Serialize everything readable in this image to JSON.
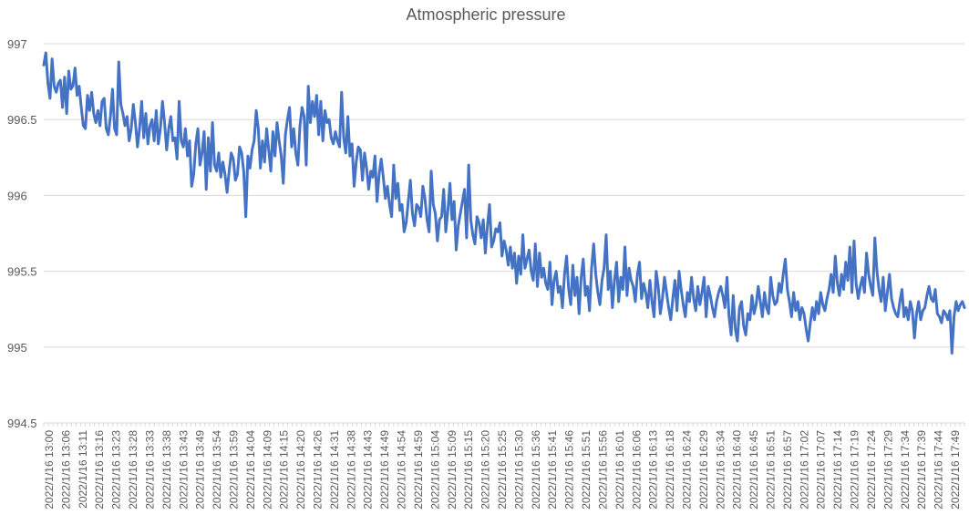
{
  "chart_data": {
    "type": "line",
    "title": "Atmospheric pressure",
    "xlabel": "",
    "ylabel": "",
    "ylim": [
      994.5,
      997
    ],
    "yticks": [
      994.5,
      995,
      995.5,
      996,
      996.5,
      997
    ],
    "ytick_labels": [
      "994.5",
      "995",
      "995.5",
      "996",
      "996.5",
      "997"
    ],
    "grid": true,
    "legend": "none",
    "series_color": "#4472C4",
    "x_labels": [
      "2022/1/16 13:00",
      "2022/1/16 13:06",
      "2022/1/16 13:11",
      "2022/1/16 13:16",
      "2022/1/16 13:23",
      "2022/1/16 13:28",
      "2022/1/16 13:33",
      "2022/1/16 13:38",
      "2022/1/16 13:43",
      "2022/1/16 13:49",
      "2022/1/16 13:54",
      "2022/1/16 13:59",
      "2022/1/16 14:04",
      "2022/1/16 14:09",
      "2022/1/16 14:15",
      "2022/1/16 14:20",
      "2022/1/16 14:26",
      "2022/1/16 14:31",
      "2022/1/16 14:38",
      "2022/1/16 14:43",
      "2022/1/16 14:49",
      "2022/1/16 14:54",
      "2022/1/16 14:59",
      "2022/1/16 15:04",
      "2022/1/16 15:09",
      "2022/1/16 15:15",
      "2022/1/16 15:20",
      "2022/1/16 15:25",
      "2022/1/16 15:30",
      "2022/1/16 15:36",
      "2022/1/16 15:41",
      "2022/1/16 15:46",
      "2022/1/16 15:51",
      "2022/1/16 15:56",
      "2022/1/16 16:01",
      "2022/1/16 16:06",
      "2022/1/16 16:13",
      "2022/1/16 16:18",
      "2022/1/16 16:24",
      "2022/1/16 16:29",
      "2022/1/16 16:34",
      "2022/1/16 16:40",
      "2022/1/16 16:45",
      "2022/1/16 16:51",
      "2022/1/16 16:57",
      "2022/1/16 17:02",
      "2022/1/16 17:07",
      "2022/1/16 17:14",
      "2022/1/16 17:19",
      "2022/1/16 17:24",
      "2022/1/16 17:29",
      "2022/1/16 17:34",
      "2022/1/16 17:39",
      "2022/1/16 17:44",
      "2022/1/16 17:49"
    ],
    "series": [
      {
        "name": "Atmospheric pressure",
        "values": [
          996.86,
          996.94,
          996.74,
          996.64,
          996.9,
          996.72,
          996.68,
          996.74,
          996.76,
          996.58,
          996.78,
          996.54,
          996.82,
          996.7,
          996.72,
          996.84,
          996.66,
          996.72,
          996.58,
          996.46,
          996.44,
          996.66,
          996.56,
          996.68,
          996.54,
          996.48,
          996.56,
          996.46,
          996.62,
          996.64,
          996.44,
          996.4,
          996.52,
          996.7,
          996.44,
          996.4,
          996.88,
          996.6,
          996.54,
          996.46,
          996.52,
          996.36,
          996.44,
          996.6,
          996.48,
          996.32,
          996.44,
          996.62,
          996.38,
          996.54,
          996.34,
          996.46,
          996.5,
          996.36,
          996.56,
          996.34,
          996.44,
          996.62,
          996.48,
          996.3,
          996.44,
          996.52,
          996.36,
          996.38,
          996.24,
          996.62,
          996.36,
          996.32,
          996.44,
          996.26,
          996.36,
          996.06,
          996.14,
          996.34,
          996.44,
          996.2,
          996.28,
          996.42,
          996.04,
          996.38,
          996.16,
          996.48,
          996.2,
          996.16,
          996.28,
          996.12,
          996.22,
          996.14,
          996.02,
          996.16,
          996.28,
          996.24,
          996.1,
          996.14,
          996.32,
          996.28,
          996.16,
          995.86,
          996.26,
          996.18,
          996.3,
          996.36,
          996.56,
          996.44,
          996.18,
          996.36,
          996.22,
          996.44,
          996.3,
          996.16,
          996.42,
          996.26,
          996.48,
          996.36,
          996.26,
          996.08,
          996.4,
          996.5,
          996.58,
          996.32,
          996.44,
          996.28,
          996.2,
          996.46,
          996.58,
          996.52,
          996.2,
          996.72,
          996.48,
          996.62,
          996.52,
          996.66,
          996.4,
          996.62,
          996.36,
          996.56,
          996.48,
          996.5,
          996.38,
          996.34,
          996.42,
          996.36,
          996.32,
          996.68,
          996.38,
          996.28,
          996.52,
          996.26,
          996.34,
          996.06,
          996.22,
          996.32,
          996.3,
          996.1,
          996.28,
          996.18,
          996.04,
          996.16,
          996.12,
          996.26,
          995.96,
          996.14,
          996.24,
          996.12,
          995.98,
          996.06,
          995.94,
          995.86,
          996.2,
          995.98,
          996.08,
          995.9,
          995.94,
          995.76,
          995.82,
          995.96,
          996.1,
          995.88,
          995.8,
          995.94,
          995.92,
          995.86,
          996.06,
          995.98,
          995.84,
          995.76,
          996.16,
          995.94,
          995.88,
          995.7,
          995.84,
          995.86,
          996.04,
          995.76,
          995.9,
          996.08,
          995.84,
          995.96,
          995.64,
          995.8,
          995.88,
          995.96,
          996.04,
          995.72,
          996.2,
          995.84,
          995.74,
          995.68,
          995.86,
          995.82,
          995.72,
          995.84,
          995.62,
          995.8,
          995.94,
          995.66,
          995.7,
          995.78,
          995.76,
          995.82,
          995.6,
          995.7,
          995.64,
          995.54,
          995.66,
          995.52,
          995.62,
          995.42,
          995.6,
          995.48,
          995.74,
          995.52,
          995.58,
          995.64,
          995.5,
          995.44,
          995.68,
          995.4,
          995.62,
          995.46,
          995.52,
          995.42,
          995.38,
          995.56,
          995.28,
          995.44,
          995.5,
          995.36,
          995.4,
          995.26,
          995.48,
          995.6,
          995.38,
          995.28,
          995.54,
          995.34,
          995.46,
          995.22,
          995.46,
          995.58,
          995.34,
          995.4,
          995.24,
          995.52,
          995.68,
          995.48,
          995.36,
          995.28,
          995.44,
          995.52,
          995.74,
          995.38,
          995.5,
          995.26,
          995.44,
          995.56,
          995.3,
          995.46,
          995.38,
          995.66,
          995.34,
          995.52,
          995.44,
          995.4,
          995.3,
          995.48,
          995.56,
          995.32,
          995.42,
          995.36,
          995.26,
          995.44,
          995.3,
          995.2,
          995.5,
          995.4,
          995.22,
          995.32,
          995.46,
          995.36,
          995.26,
          995.18,
          995.32,
          995.44,
          995.24,
          995.5,
          995.38,
          995.28,
          995.2,
          995.36,
          995.3,
          995.46,
          995.32,
          995.24,
          995.4,
          995.28,
          995.36,
          995.46,
          995.2,
          995.4,
          995.34,
          995.26,
          995.2,
          995.3,
          995.36,
          995.4,
          995.34,
          995.26,
          995.46,
          995.2,
          995.08,
          995.34,
          995.12,
          995.04,
          995.26,
          995.3,
          995.14,
          995.08,
          995.22,
          995.18,
          995.34,
          995.22,
          995.28,
          995.4,
          995.3,
          995.2,
          995.36,
          995.26,
          995.22,
          995.46,
          995.34,
          995.28,
          995.3,
          995.42,
          995.36,
          995.48,
          995.58,
          995.38,
          995.3,
          995.2,
          995.36,
          995.24,
          995.3,
          995.18,
          995.26,
          995.22,
          995.12,
          995.04,
          995.16,
          995.26,
          995.18,
          995.3,
          995.22,
          995.36,
          995.28,
          995.24,
          995.32,
          995.38,
          995.48,
          995.36,
          995.6,
          995.42,
          995.34,
          995.48,
          995.38,
          995.56,
          995.44,
          995.66,
          995.36,
          995.7,
          995.42,
          995.32,
          995.4,
          995.46,
          995.36,
          995.62,
          995.48,
          995.4,
          995.34,
          995.72,
          995.5,
          995.38,
          995.3,
          995.46,
          995.24,
          995.36,
          995.48,
          995.32,
          995.26,
          995.22,
          995.2,
          995.3,
          995.38,
          995.2,
          995.26,
          995.18,
          995.3,
          995.24,
          995.06,
          995.22,
          995.3,
          995.18,
          995.24,
          995.26,
          995.34,
          995.4,
          995.32,
          995.3,
          995.38,
          995.22,
          995.2,
          995.16,
          995.24,
          995.22,
          995.18,
          995.24,
          994.96,
          995.2,
          995.3,
          995.24,
          995.28,
          995.3,
          995.26
        ]
      }
    ]
  }
}
